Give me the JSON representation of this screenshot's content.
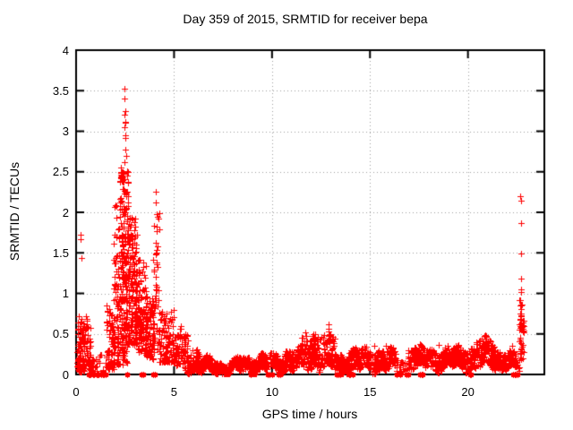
{
  "chart_data": {
    "type": "scatter",
    "title": "Day 359 of 2015, SRMTID for receiver bepa",
    "xlabel": "GPS time / hours",
    "ylabel": "SRMTID / TECUs",
    "xlim": [
      0,
      23.9
    ],
    "ylim": [
      0,
      4
    ],
    "xticks": [
      0,
      5,
      10,
      15,
      20
    ],
    "xtick_labels": [
      "0",
      "5",
      "10",
      "15",
      "20"
    ],
    "yticks": [
      0,
      0.5,
      1,
      1.5,
      2,
      2.5,
      3,
      3.5,
      4
    ],
    "ytick_labels": [
      "0",
      "0.5",
      "1",
      "1.5",
      "2",
      "2.5",
      "3",
      "3.5",
      "4"
    ],
    "grid": true,
    "legend": false,
    "marker": "+",
    "marker_size": 7,
    "marker_color": "#ff0000",
    "grid_color": "#9e9e9e",
    "axis_color": "#000000",
    "background": "#ffffff",
    "seed": 20151225,
    "density_segments_format": [
      "x_start",
      "x_end",
      "count",
      "y_min",
      "y_max",
      "skew_toward_min"
    ],
    "density_segments": [
      [
        0.02,
        0.75,
        120,
        0.02,
        0.6,
        2.0
      ],
      [
        0.1,
        0.6,
        25,
        0.35,
        0.72,
        1.2
      ],
      [
        0.75,
        1.55,
        45,
        0.0,
        0.26,
        1.8
      ],
      [
        1.55,
        1.95,
        70,
        0.06,
        0.85,
        1.5
      ],
      [
        1.9,
        2.25,
        90,
        0.12,
        2.1,
        1.6
      ],
      [
        2.25,
        2.65,
        190,
        0.4,
        2.55,
        1.0
      ],
      [
        2.3,
        2.6,
        30,
        0.15,
        0.45,
        1.0
      ],
      [
        2.65,
        3.1,
        150,
        0.35,
        1.95,
        1.15
      ],
      [
        3.1,
        3.6,
        120,
        0.25,
        1.45,
        1.3
      ],
      [
        3.55,
        4.0,
        80,
        0.18,
        1.0,
        1.5
      ],
      [
        3.95,
        4.25,
        40,
        0.3,
        2.0,
        1.3
      ],
      [
        4.25,
        5.0,
        110,
        0.15,
        0.8,
        1.6
      ],
      [
        5.0,
        5.7,
        90,
        0.08,
        0.55,
        1.6
      ],
      [
        5.7,
        6.3,
        85,
        0.05,
        0.32,
        1.4
      ],
      [
        6.3,
        7.4,
        150,
        0.03,
        0.18,
        1.2
      ],
      [
        7.4,
        8.2,
        110,
        0.02,
        0.15,
        1.2
      ],
      [
        8.2,
        9.0,
        110,
        0.04,
        0.22,
        1.2
      ],
      [
        9.0,
        10.6,
        210,
        0.05,
        0.24,
        1.2
      ],
      [
        10.6,
        11.5,
        120,
        0.06,
        0.3,
        1.2
      ],
      [
        11.5,
        12.05,
        80,
        0.08,
        0.45,
        1.25
      ],
      [
        12.05,
        12.35,
        50,
        0.1,
        0.52,
        1.1
      ],
      [
        12.35,
        13.2,
        110,
        0.08,
        0.48,
        1.3
      ],
      [
        13.2,
        13.75,
        60,
        0.04,
        0.25,
        1.3
      ],
      [
        13.75,
        14.4,
        85,
        0.06,
        0.3,
        1.2
      ],
      [
        14.4,
        16.35,
        260,
        0.06,
        0.3,
        1.25
      ],
      [
        16.35,
        16.95,
        25,
        0.02,
        0.2,
        1.4
      ],
      [
        16.95,
        17.35,
        45,
        0.1,
        0.36,
        1.2
      ],
      [
        17.35,
        19.75,
        310,
        0.08,
        0.32,
        1.25
      ],
      [
        19.75,
        20.4,
        85,
        0.08,
        0.33,
        1.2
      ],
      [
        20.4,
        21.4,
        135,
        0.1,
        0.42,
        1.25
      ],
      [
        21.4,
        22.3,
        115,
        0.08,
        0.3,
        1.3
      ],
      [
        22.3,
        22.62,
        25,
        0.05,
        0.25,
        1.4
      ],
      [
        22.62,
        22.85,
        45,
        0.18,
        0.95,
        1.2
      ]
    ],
    "notable_points": [
      [
        0.22,
        1.72
      ],
      [
        0.25,
        1.67
      ],
      [
        0.28,
        1.44
      ],
      [
        2.47,
        3.53
      ],
      [
        2.49,
        3.4
      ],
      [
        2.5,
        3.25
      ],
      [
        2.47,
        3.2
      ],
      [
        2.5,
        3.12
      ],
      [
        2.52,
        3.1
      ],
      [
        2.48,
        3.05
      ],
      [
        2.5,
        2.95
      ],
      [
        2.53,
        2.92
      ],
      [
        2.5,
        2.77
      ],
      [
        2.55,
        2.7
      ],
      [
        2.45,
        2.62
      ],
      [
        2.72,
        1.93
      ],
      [
        2.95,
        1.78
      ],
      [
        4.05,
        2.25
      ],
      [
        4.08,
        2.12
      ],
      [
        4.1,
        1.98
      ],
      [
        4.12,
        1.82
      ],
      [
        4.07,
        1.62
      ],
      [
        4.1,
        1.5
      ],
      [
        4.13,
        1.38
      ],
      [
        4.05,
        1.2
      ],
      [
        4.1,
        1.08
      ],
      [
        11.72,
        0.52
      ],
      [
        11.75,
        0.47
      ],
      [
        12.12,
        0.5
      ],
      [
        12.5,
        0.46
      ],
      [
        12.88,
        0.56
      ],
      [
        12.9,
        0.62
      ],
      [
        12.92,
        0.5
      ],
      [
        13.05,
        0.44
      ],
      [
        15.2,
        0.35
      ],
      [
        15.8,
        0.35
      ],
      [
        18.5,
        0.36
      ],
      [
        20.9,
        0.44
      ],
      [
        21.1,
        0.42
      ],
      [
        22.68,
        2.2
      ],
      [
        22.7,
        2.14
      ],
      [
        22.7,
        1.87
      ],
      [
        22.69,
        1.49
      ],
      [
        22.71,
        1.18
      ],
      [
        22.7,
        1.05
      ],
      [
        22.72,
        1.02
      ],
      [
        22.68,
        0.92
      ],
      [
        22.73,
        0.85
      ],
      [
        22.66,
        0.75
      ],
      [
        22.65,
        0.68
      ],
      [
        22.67,
        0.6
      ]
    ],
    "zero_line_marks_x": [
      0.62,
      0.68,
      0.73,
      0.85,
      0.88,
      0.92,
      1.05,
      1.1,
      1.15,
      1.3,
      1.35,
      1.42,
      1.5,
      2.62,
      3.32,
      3.42,
      3.95,
      4.02,
      8.93,
      9.8,
      9.85,
      10.0,
      10.35,
      10.42,
      13.3,
      13.38,
      13.5,
      13.92,
      14.0,
      14.1,
      16.35,
      16.55,
      16.88,
      16.95,
      17.55,
      17.62,
      17.7,
      20.1,
      20.16,
      22.3,
      22.38,
      22.45,
      22.52
    ]
  }
}
